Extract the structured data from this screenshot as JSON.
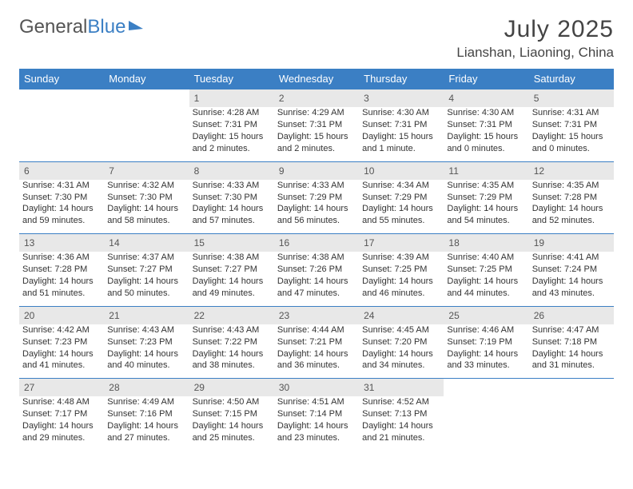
{
  "logo": {
    "text_gray": "General",
    "text_blue": "Blue"
  },
  "header": {
    "month": "July 2025",
    "location": "Lianshan, Liaoning, China"
  },
  "colors": {
    "header_bg": "#3b7fc4",
    "daynum_bg": "#e8e8e8",
    "border": "#3b7fc4"
  },
  "weekdays": [
    "Sunday",
    "Monday",
    "Tuesday",
    "Wednesday",
    "Thursday",
    "Friday",
    "Saturday"
  ],
  "weeks": [
    {
      "nums": [
        "",
        "",
        "1",
        "2",
        "3",
        "4",
        "5"
      ],
      "cells": [
        null,
        null,
        {
          "sr": "Sunrise: 4:28 AM",
          "ss": "Sunset: 7:31 PM",
          "dl": "Daylight: 15 hours and 2 minutes."
        },
        {
          "sr": "Sunrise: 4:29 AM",
          "ss": "Sunset: 7:31 PM",
          "dl": "Daylight: 15 hours and 2 minutes."
        },
        {
          "sr": "Sunrise: 4:30 AM",
          "ss": "Sunset: 7:31 PM",
          "dl": "Daylight: 15 hours and 1 minute."
        },
        {
          "sr": "Sunrise: 4:30 AM",
          "ss": "Sunset: 7:31 PM",
          "dl": "Daylight: 15 hours and 0 minutes."
        },
        {
          "sr": "Sunrise: 4:31 AM",
          "ss": "Sunset: 7:31 PM",
          "dl": "Daylight: 15 hours and 0 minutes."
        }
      ]
    },
    {
      "nums": [
        "6",
        "7",
        "8",
        "9",
        "10",
        "11",
        "12"
      ],
      "cells": [
        {
          "sr": "Sunrise: 4:31 AM",
          "ss": "Sunset: 7:30 PM",
          "dl": "Daylight: 14 hours and 59 minutes."
        },
        {
          "sr": "Sunrise: 4:32 AM",
          "ss": "Sunset: 7:30 PM",
          "dl": "Daylight: 14 hours and 58 minutes."
        },
        {
          "sr": "Sunrise: 4:33 AM",
          "ss": "Sunset: 7:30 PM",
          "dl": "Daylight: 14 hours and 57 minutes."
        },
        {
          "sr": "Sunrise: 4:33 AM",
          "ss": "Sunset: 7:29 PM",
          "dl": "Daylight: 14 hours and 56 minutes."
        },
        {
          "sr": "Sunrise: 4:34 AM",
          "ss": "Sunset: 7:29 PM",
          "dl": "Daylight: 14 hours and 55 minutes."
        },
        {
          "sr": "Sunrise: 4:35 AM",
          "ss": "Sunset: 7:29 PM",
          "dl": "Daylight: 14 hours and 54 minutes."
        },
        {
          "sr": "Sunrise: 4:35 AM",
          "ss": "Sunset: 7:28 PM",
          "dl": "Daylight: 14 hours and 52 minutes."
        }
      ]
    },
    {
      "nums": [
        "13",
        "14",
        "15",
        "16",
        "17",
        "18",
        "19"
      ],
      "cells": [
        {
          "sr": "Sunrise: 4:36 AM",
          "ss": "Sunset: 7:28 PM",
          "dl": "Daylight: 14 hours and 51 minutes."
        },
        {
          "sr": "Sunrise: 4:37 AM",
          "ss": "Sunset: 7:27 PM",
          "dl": "Daylight: 14 hours and 50 minutes."
        },
        {
          "sr": "Sunrise: 4:38 AM",
          "ss": "Sunset: 7:27 PM",
          "dl": "Daylight: 14 hours and 49 minutes."
        },
        {
          "sr": "Sunrise: 4:38 AM",
          "ss": "Sunset: 7:26 PM",
          "dl": "Daylight: 14 hours and 47 minutes."
        },
        {
          "sr": "Sunrise: 4:39 AM",
          "ss": "Sunset: 7:25 PM",
          "dl": "Daylight: 14 hours and 46 minutes."
        },
        {
          "sr": "Sunrise: 4:40 AM",
          "ss": "Sunset: 7:25 PM",
          "dl": "Daylight: 14 hours and 44 minutes."
        },
        {
          "sr": "Sunrise: 4:41 AM",
          "ss": "Sunset: 7:24 PM",
          "dl": "Daylight: 14 hours and 43 minutes."
        }
      ]
    },
    {
      "nums": [
        "20",
        "21",
        "22",
        "23",
        "24",
        "25",
        "26"
      ],
      "cells": [
        {
          "sr": "Sunrise: 4:42 AM",
          "ss": "Sunset: 7:23 PM",
          "dl": "Daylight: 14 hours and 41 minutes."
        },
        {
          "sr": "Sunrise: 4:43 AM",
          "ss": "Sunset: 7:23 PM",
          "dl": "Daylight: 14 hours and 40 minutes."
        },
        {
          "sr": "Sunrise: 4:43 AM",
          "ss": "Sunset: 7:22 PM",
          "dl": "Daylight: 14 hours and 38 minutes."
        },
        {
          "sr": "Sunrise: 4:44 AM",
          "ss": "Sunset: 7:21 PM",
          "dl": "Daylight: 14 hours and 36 minutes."
        },
        {
          "sr": "Sunrise: 4:45 AM",
          "ss": "Sunset: 7:20 PM",
          "dl": "Daylight: 14 hours and 34 minutes."
        },
        {
          "sr": "Sunrise: 4:46 AM",
          "ss": "Sunset: 7:19 PM",
          "dl": "Daylight: 14 hours and 33 minutes."
        },
        {
          "sr": "Sunrise: 4:47 AM",
          "ss": "Sunset: 7:18 PM",
          "dl": "Daylight: 14 hours and 31 minutes."
        }
      ]
    },
    {
      "nums": [
        "27",
        "28",
        "29",
        "30",
        "31",
        "",
        ""
      ],
      "cells": [
        {
          "sr": "Sunrise: 4:48 AM",
          "ss": "Sunset: 7:17 PM",
          "dl": "Daylight: 14 hours and 29 minutes."
        },
        {
          "sr": "Sunrise: 4:49 AM",
          "ss": "Sunset: 7:16 PM",
          "dl": "Daylight: 14 hours and 27 minutes."
        },
        {
          "sr": "Sunrise: 4:50 AM",
          "ss": "Sunset: 7:15 PM",
          "dl": "Daylight: 14 hours and 25 minutes."
        },
        {
          "sr": "Sunrise: 4:51 AM",
          "ss": "Sunset: 7:14 PM",
          "dl": "Daylight: 14 hours and 23 minutes."
        },
        {
          "sr": "Sunrise: 4:52 AM",
          "ss": "Sunset: 7:13 PM",
          "dl": "Daylight: 14 hours and 21 minutes."
        },
        null,
        null
      ]
    }
  ]
}
